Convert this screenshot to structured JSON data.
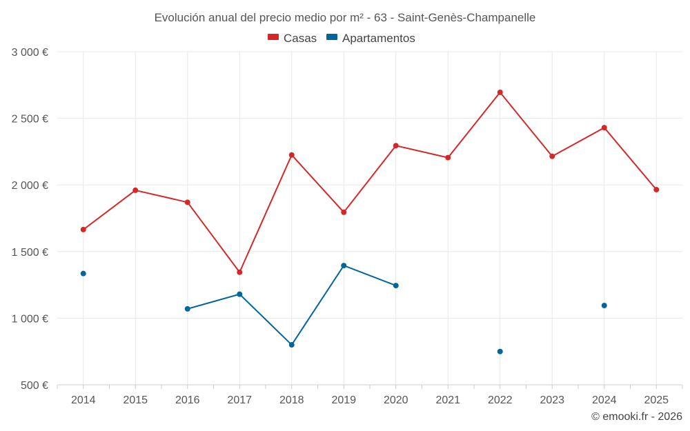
{
  "chart_data": {
    "type": "line",
    "title": "Evolución anual del precio medio por m² - 63 - Saint-Genès-Champanelle",
    "categories": [
      "2014",
      "2015",
      "2016",
      "2017",
      "2018",
      "2019",
      "2020",
      "2021",
      "2022",
      "2023",
      "2024",
      "2025"
    ],
    "series": [
      {
        "name": "Casas",
        "color": "#d62728",
        "values": [
          1665,
          1960,
          1870,
          1345,
          2225,
          1795,
          2295,
          2205,
          2695,
          2215,
          2430,
          1965
        ]
      },
      {
        "name": "Apartamentos",
        "color": "#00669c",
        "values": [
          1335,
          null,
          1070,
          1180,
          800,
          1395,
          1245,
          null,
          750,
          null,
          1095,
          null
        ]
      }
    ],
    "ylim": [
      500,
      3000
    ],
    "y_ticks": [
      500,
      1000,
      1500,
      2000,
      2500,
      3000
    ],
    "y_tick_labels": [
      "500 €",
      "1 000 €",
      "1 500 €",
      "2 000 €",
      "2 500 €",
      "3 000 €"
    ],
    "xlabel": "",
    "ylabel": "",
    "legend_position": "top-center",
    "grid": true
  },
  "credit": "© emooki.fr - 2026"
}
